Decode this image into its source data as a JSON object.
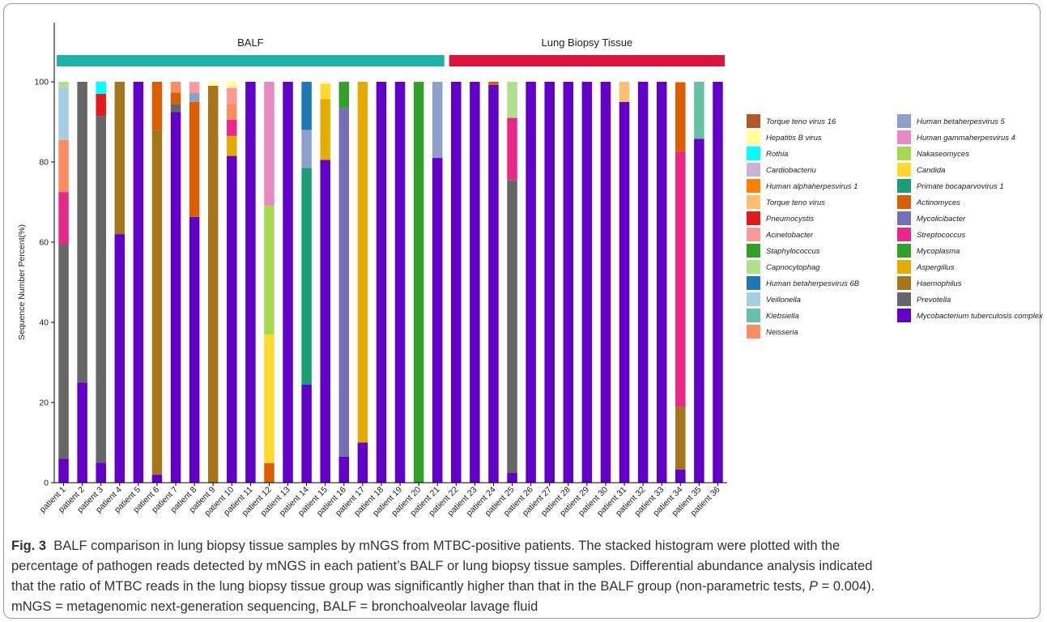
{
  "chart_data": {
    "type": "bar",
    "stacked": true,
    "ylabel": "Sequence Number Percent(%)",
    "ylim": [
      0,
      100
    ],
    "yticks": [
      0,
      20,
      40,
      60,
      80,
      100
    ],
    "grid": false,
    "legend_position": "right",
    "groups": [
      {
        "label": "BALF",
        "color": "#20b2aa",
        "range": [
          0,
          20
        ]
      },
      {
        "label": "Lung Biopsy Tissue",
        "color": "#dc143c",
        "range": [
          21,
          35
        ]
      }
    ],
    "categories": [
      "patient 1",
      "patient 2",
      "patient 3",
      "patient 4",
      "patient 5",
      "patient 6",
      "patient 7",
      "patient 8",
      "patient 9",
      "patient 10",
      "patient 11",
      "patient 12",
      "patient 13",
      "patient 14",
      "patient 15",
      "patient 16",
      "patient 17",
      "patient 18",
      "patient 19",
      "patient 20",
      "patient 21",
      "patient 22",
      "patient 23",
      "patient 24",
      "patient 25",
      "patient 26",
      "patient 27",
      "patient 28",
      "patient 29",
      "patient 30",
      "patient 31",
      "patient 32",
      "patient 33",
      "patient 34",
      "patient 35",
      "patient 36"
    ],
    "series": [
      {
        "name": "Mycobacterium tuberculosis complex",
        "color": "#6200c8",
        "values": [
          6,
          25,
          5,
          62,
          100,
          2,
          92.5,
          66.3,
          0,
          81.5,
          100,
          0,
          100,
          24.5,
          80.5,
          6.5,
          10,
          100,
          100,
          0,
          81,
          100,
          100,
          99.2,
          2.5,
          100,
          100,
          100,
          100,
          100,
          95,
          100,
          100,
          3.3,
          85.8,
          100
        ]
      },
      {
        "name": "Prevotella",
        "color": "#666666",
        "values": [
          53.5,
          75,
          86.5,
          0,
          0,
          0,
          2,
          0,
          0,
          0,
          0,
          0,
          0,
          0,
          0,
          0,
          0,
          0,
          0,
          0,
          0,
          0,
          0,
          0,
          73,
          0,
          0,
          0,
          0,
          0,
          0,
          0,
          0,
          0,
          0,
          0
        ]
      },
      {
        "name": "Haemophilus",
        "color": "#a6761d",
        "values": [
          0,
          0,
          0,
          38,
          0,
          86,
          0,
          0,
          99,
          0,
          0,
          0,
          0,
          0,
          0,
          0,
          0,
          0,
          0,
          0,
          0,
          0,
          0,
          0,
          0,
          0,
          0,
          0,
          0,
          0,
          0,
          0,
          0,
          15.7,
          0,
          0
        ]
      },
      {
        "name": "Aspergillus",
        "color": "#e6ab02",
        "values": [
          0,
          0,
          0,
          0,
          0,
          0,
          0,
          0,
          0,
          5,
          0,
          0,
          0,
          0,
          15.2,
          0,
          90,
          0,
          0,
          0,
          0,
          0,
          0,
          0,
          0,
          0,
          0,
          0,
          0,
          0,
          0,
          0,
          0,
          0,
          0,
          0
        ]
      },
      {
        "name": "Mycoplasma",
        "color": "#33a02c",
        "values": [
          0,
          0,
          0,
          0,
          0,
          0,
          0,
          0,
          0,
          0,
          0,
          0,
          0,
          0,
          0,
          0,
          0,
          0,
          0,
          100,
          0,
          0,
          0,
          0,
          0,
          0,
          0,
          0,
          0,
          0,
          0,
          0,
          0,
          0,
          0,
          0
        ]
      },
      {
        "name": "Streptococcus",
        "color": "#e7298a",
        "values": [
          13,
          0,
          0,
          0,
          0,
          0,
          0,
          0,
          0,
          4,
          0,
          0,
          0,
          0,
          0,
          0,
          0,
          0,
          0,
          0,
          0,
          0,
          0,
          0,
          15.5,
          0,
          0,
          0,
          0,
          0,
          0,
          0,
          0,
          63.5,
          0,
          0
        ]
      },
      {
        "name": "Mycolicibacter",
        "color": "#7570b3",
        "values": [
          0,
          0,
          0,
          0,
          0,
          0,
          0,
          0,
          0,
          0,
          0,
          0,
          0,
          0,
          0,
          87,
          0,
          0,
          0,
          0,
          0,
          0,
          0,
          0,
          0,
          0,
          0,
          0,
          0,
          0,
          0,
          0,
          0,
          0,
          0,
          0
        ]
      },
      {
        "name": "Actinomyces",
        "color": "#d95f02",
        "values": [
          0,
          0,
          0,
          0,
          0,
          12,
          2.8,
          28.7,
          0,
          0,
          0,
          4.9,
          0,
          0,
          0,
          0,
          0,
          0,
          0,
          0,
          0,
          0,
          0,
          0.6,
          0,
          0,
          0,
          0,
          0,
          0,
          0,
          0,
          0,
          17.4,
          0,
          0
        ]
      },
      {
        "name": "Primate bocaparvovirus 1",
        "color": "#1b9e77",
        "values": [
          0,
          0,
          0,
          0,
          0,
          0,
          0,
          0,
          0,
          0,
          0,
          0,
          0,
          54,
          0,
          0,
          0,
          0,
          0,
          0,
          0,
          0,
          0,
          0,
          0,
          0,
          0,
          0,
          0,
          0,
          0,
          0,
          0,
          0,
          0,
          0
        ]
      },
      {
        "name": "Candida",
        "color": "#ffd92f",
        "values": [
          0,
          0,
          0,
          0,
          0,
          0,
          0,
          0,
          0,
          0,
          0,
          32,
          0,
          0,
          3.8,
          0,
          0,
          0,
          0,
          0,
          0,
          0,
          0,
          0,
          0,
          0,
          0,
          0,
          0,
          0,
          0,
          0,
          0,
          0,
          0,
          0
        ]
      },
      {
        "name": "Nakaseomyces",
        "color": "#a6d854",
        "values": [
          0,
          0,
          0,
          0,
          0,
          0,
          0,
          0,
          0,
          0,
          0,
          32.2,
          0,
          0,
          0,
          0,
          0,
          0,
          0,
          0,
          0,
          0,
          0,
          0,
          0,
          0,
          0,
          0,
          0,
          0,
          0,
          0,
          0,
          0,
          0,
          0
        ]
      },
      {
        "name": "Human gammaherpesvirus 4",
        "color": "#e78ac3",
        "values": [
          0,
          0,
          0,
          0,
          0,
          0,
          0,
          0,
          0,
          0,
          0,
          30.9,
          0,
          0,
          0,
          0,
          0,
          0,
          0,
          0,
          0,
          0,
          0,
          0,
          0,
          0,
          0,
          0,
          0,
          0,
          0,
          0,
          0,
          0,
          0,
          0
        ]
      },
      {
        "name": "Human betaherpesvirus 5",
        "color": "#8da0cb",
        "values": [
          0,
          0,
          0,
          0,
          0,
          0,
          0,
          2.3,
          0,
          0,
          0,
          0,
          0,
          9.5,
          0,
          0,
          0,
          0,
          0,
          0,
          19,
          0,
          0,
          0,
          0,
          0,
          0,
          0,
          0,
          0,
          0,
          0,
          0,
          0,
          0,
          0
        ]
      },
      {
        "name": "Neisseria",
        "color": "#fc8d62",
        "values": [
          13,
          0,
          0,
          0,
          0,
          0,
          2.7,
          0,
          0,
          4,
          0,
          0,
          0,
          0,
          0,
          0,
          0,
          0,
          0,
          0,
          0,
          0,
          0,
          0,
          0,
          0,
          0,
          0,
          0,
          0,
          0,
          0,
          0,
          0,
          0,
          0
        ]
      },
      {
        "name": "Klebsiella",
        "color": "#66c2a5",
        "values": [
          0,
          0,
          0,
          0,
          0,
          0,
          0,
          0,
          0,
          0,
          0,
          0,
          0,
          0,
          0,
          0,
          0,
          0,
          0,
          0,
          0,
          0,
          0,
          0,
          0,
          0,
          0,
          0,
          0,
          0,
          0,
          0,
          0,
          0,
          14.2,
          0
        ]
      },
      {
        "name": "Veillonella",
        "color": "#a6cee3",
        "values": [
          13,
          0,
          0,
          0,
          0,
          0,
          0,
          0,
          0,
          0,
          0,
          0,
          0,
          0,
          0,
          0,
          0,
          0,
          0,
          0,
          0,
          0,
          0,
          0,
          0,
          0,
          0,
          0,
          0,
          0,
          0,
          0,
          0,
          0,
          0,
          0
        ]
      },
      {
        "name": "Human betaherpesvirus 6B",
        "color": "#1f78b4",
        "values": [
          0,
          0,
          0,
          0,
          0,
          0,
          0,
          0,
          0,
          0,
          0,
          0,
          0,
          12,
          0,
          0,
          0,
          0,
          0,
          0,
          0,
          0,
          0,
          0,
          0,
          0,
          0,
          0,
          0,
          0,
          0,
          0,
          0,
          0,
          0,
          0
        ]
      },
      {
        "name": "Capnocytophag",
        "color": "#b2df8a",
        "values": [
          1.5,
          0,
          0,
          0,
          0,
          0,
          0,
          0,
          0,
          0,
          0,
          0,
          0,
          0,
          0,
          0,
          0,
          0,
          0,
          0,
          0,
          0,
          0,
          0,
          9,
          0,
          0,
          0,
          0,
          0,
          0,
          0,
          0,
          0,
          0,
          0
        ]
      },
      {
        "name": "Staphylococcus",
        "color": "#33a02c",
        "values": [
          0,
          0,
          0,
          0,
          0,
          0,
          0,
          0,
          0,
          0,
          0,
          0,
          0,
          0,
          0,
          6.5,
          0,
          0,
          0,
          0,
          0,
          0,
          0,
          0,
          0,
          0,
          0,
          0,
          0,
          0,
          0,
          0,
          0,
          0,
          0,
          0
        ]
      },
      {
        "name": "Acinetobacter",
        "color": "#fb9a99",
        "values": [
          0,
          0,
          0,
          0,
          0,
          0,
          0,
          2.4,
          0,
          4,
          0,
          0,
          0,
          0,
          0,
          0,
          0,
          0,
          0,
          0,
          0,
          0,
          0,
          0,
          0,
          0,
          0,
          0,
          0,
          0,
          0,
          0,
          0,
          0,
          0,
          0
        ]
      },
      {
        "name": "Pneumocystis",
        "color": "#e31a1c",
        "values": [
          0,
          0,
          5.5,
          0,
          0,
          0,
          0,
          0,
          0,
          0,
          0,
          0,
          0,
          0,
          0,
          0,
          0,
          0,
          0,
          0,
          0,
          0,
          0,
          0,
          0,
          0,
          0,
          0,
          0,
          0,
          0,
          0,
          0,
          0,
          0,
          0
        ]
      },
      {
        "name": "Torque teno virus",
        "color": "#fdbf6f",
        "values": [
          0,
          0,
          0,
          0,
          0,
          0,
          0,
          0,
          0,
          0,
          0,
          0,
          0,
          0,
          0,
          0,
          0,
          0,
          0,
          0,
          0,
          0,
          0,
          0,
          0,
          0,
          0,
          0,
          0,
          0,
          5,
          0,
          0,
          0,
          0,
          0
        ]
      },
      {
        "name": "Human alphaherpesvirus 1",
        "color": "#ff7f00",
        "values": [
          0,
          0,
          0,
          0,
          0,
          0,
          0,
          0,
          0,
          0,
          0,
          0,
          0,
          0,
          0,
          0,
          0,
          0,
          0,
          0,
          0,
          0,
          0,
          0,
          0,
          0,
          0,
          0,
          0,
          0,
          0,
          0,
          0,
          0,
          0,
          0
        ]
      },
      {
        "name": "Cardiobacteriu",
        "color": "#cab2d6",
        "values": [
          0,
          0,
          0,
          0,
          0,
          0,
          0,
          0.3,
          0,
          0,
          0,
          0,
          0,
          0,
          0,
          0,
          0,
          0,
          0,
          0,
          0,
          0,
          0,
          0,
          0,
          0,
          0,
          0,
          0,
          0,
          0,
          0,
          0,
          0,
          0,
          0
        ]
      },
      {
        "name": "Rothia",
        "color": "#00ffff",
        "values": [
          0,
          0,
          3,
          0,
          0,
          0,
          0,
          0,
          0,
          0,
          0,
          0,
          0,
          0,
          0,
          0,
          0,
          0,
          0,
          0,
          0,
          0,
          0,
          0,
          0,
          0,
          0,
          0,
          0,
          0,
          0,
          0,
          0,
          0,
          0,
          0
        ]
      },
      {
        "name": "Hepatitis B virus",
        "color": "#ffff99",
        "values": [
          0,
          0,
          0,
          0,
          0,
          0,
          0,
          0,
          1,
          1.5,
          0,
          0,
          0,
          0,
          0.3,
          0,
          0,
          0,
          0,
          0,
          0,
          0,
          0,
          0,
          0,
          0,
          0,
          0,
          0,
          0,
          0,
          0,
          0,
          0,
          0,
          0
        ]
      },
      {
        "name": "Torque teno virus 16",
        "color": "#b15928",
        "values": [
          0,
          0,
          0,
          0,
          0,
          0,
          0,
          0,
          0,
          0,
          0,
          0,
          0,
          0,
          0,
          0,
          0,
          0,
          0,
          0,
          0,
          0,
          0,
          0.2,
          0,
          0,
          0,
          0,
          0,
          0,
          0,
          0,
          0,
          0,
          0,
          0
        ]
      }
    ],
    "legend_col1": [
      "Torque teno virus 16",
      "Hepatitis B virus",
      "Rothia",
      "Cardiobacteriu",
      "Human alphaherpesvirus 1",
      "Torque teno virus",
      "Pneumocystis",
      "Acinetobacter",
      "Staphylococcus",
      "Capnocytophag",
      "Human betaherpesvirus 6B",
      "Veillonella",
      "Klebsiella",
      "Neisseria"
    ],
    "legend_col2": [
      "Human betaherpesvirus 5",
      "Human gammaherpesvirus 4",
      "Nakaseomyces",
      "Candida",
      "Primate bocaparvovirus 1",
      "Actinomyces",
      "Mycolicibacter",
      "Streptococcus",
      "Mycoplasma",
      "Aspergillus",
      "Haemophilus",
      "Prevotella",
      "Mycobacterium tuberculosis complex"
    ]
  },
  "caption": {
    "fig_label": "Fig. 3",
    "line1": "BALF comparison in lung biopsy tissue samples by mNGS from MTBC-positive patients. The stacked histogram were plotted with the",
    "line2": "percentage of pathogen reads detected by mNGS in each patient’s BALF or lung biopsy tissue samples. Differential abundance analysis indicated",
    "line3a": "that the ratio of MTBC reads in the lung biopsy tissue group was significantly higher than that in the BALF group (non-parametric tests, ",
    "p_symbol": "P",
    "line3b": " = 0.004).",
    "line4": "mNGS = metagenomic next-generation sequencing, BALF = bronchoalveolar lavage fluid"
  }
}
